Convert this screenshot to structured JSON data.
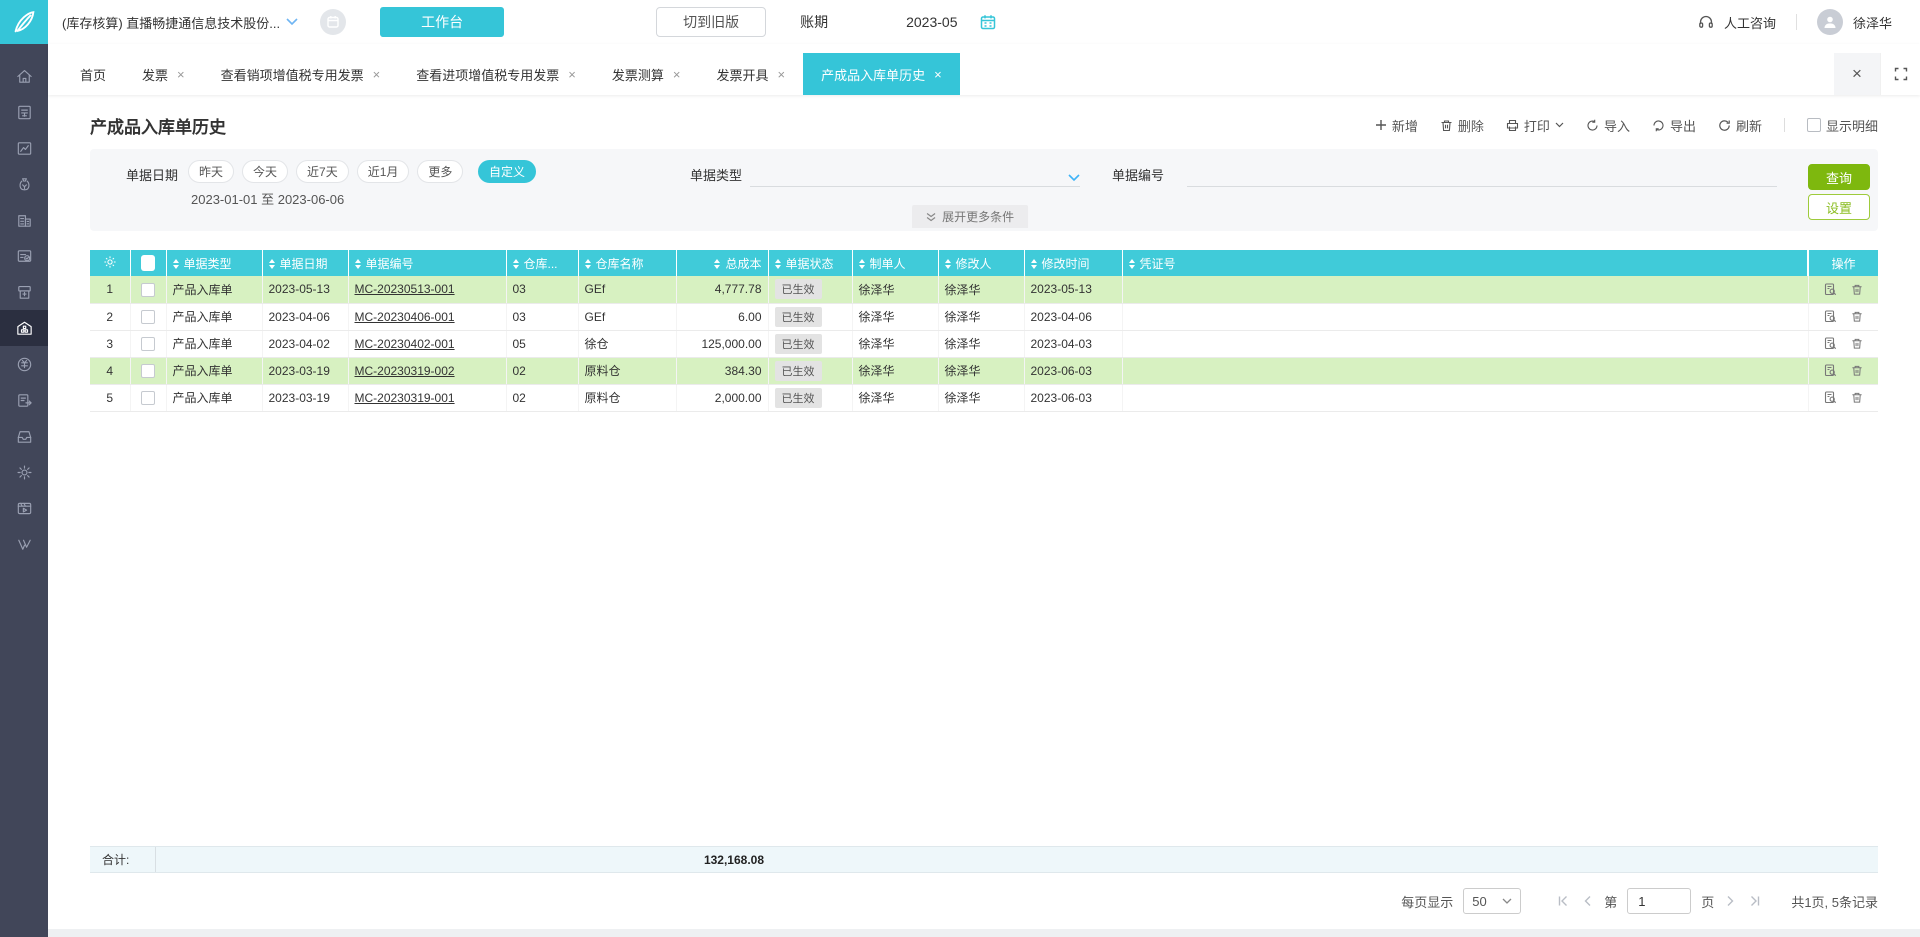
{
  "topbar": {
    "company": "(库存核算) 直播畅捷通信息技术股份...",
    "workbench": "工作台",
    "switch_old": "切到旧版",
    "period_label": "账期",
    "period": "2023-05",
    "support": "人工咨询",
    "user": "徐泽华"
  },
  "tabs": [
    {
      "label": "首页",
      "closable": false,
      "active": false
    },
    {
      "label": "发票",
      "closable": true,
      "active": false
    },
    {
      "label": "查看销项增值税专用发票",
      "closable": true,
      "active": false
    },
    {
      "label": "查看进项增值税专用发票",
      "closable": true,
      "active": false
    },
    {
      "label": "发票测算",
      "closable": true,
      "active": false
    },
    {
      "label": "发票开具",
      "closable": true,
      "active": false
    },
    {
      "label": "产成品入库单历史",
      "closable": true,
      "active": true
    }
  ],
  "page": {
    "title": "产成品入库单历史"
  },
  "toolbar": {
    "add": "新增",
    "delete": "删除",
    "print": "打印",
    "import": "导入",
    "export": "导出",
    "refresh": "刷新",
    "show_detail": "显示明细"
  },
  "filters": {
    "date_label": "单据日期",
    "quick": [
      "昨天",
      "今天",
      "近7天",
      "近1月",
      "更多"
    ],
    "custom": "自定义",
    "range": "2023-01-01 至 2023-06-06",
    "type_label": "单据类型",
    "code_label": "单据编号",
    "query": "查询",
    "settings": "设置",
    "expand": "展开更多条件"
  },
  "table": {
    "headers": {
      "type": "单据类型",
      "date": "单据日期",
      "code": "单据编号",
      "wh_code": "仓库...",
      "wh_name": "仓库名称",
      "cost": "总成本",
      "status": "单据状态",
      "maker": "制单人",
      "modifier": "修改人",
      "mtime": "修改时间",
      "voucher": "凭证号",
      "action": "操作"
    },
    "rows": [
      {
        "no": "1",
        "type": "产品入库单",
        "date": "2023-05-13",
        "code": "MC-20230513-001",
        "wh_code": "03",
        "wh_name": "GEf",
        "cost": "4,777.78",
        "status": "已生效",
        "maker": "徐泽华",
        "modifier": "徐泽华",
        "mtime": "2023-05-13",
        "voucher": "",
        "highlight": true
      },
      {
        "no": "2",
        "type": "产品入库单",
        "date": "2023-04-06",
        "code": "MC-20230406-001",
        "wh_code": "03",
        "wh_name": "GEf",
        "cost": "6.00",
        "status": "已生效",
        "maker": "徐泽华",
        "modifier": "徐泽华",
        "mtime": "2023-04-06",
        "voucher": "",
        "highlight": false
      },
      {
        "no": "3",
        "type": "产品入库单",
        "date": "2023-04-02",
        "code": "MC-20230402-001",
        "wh_code": "05",
        "wh_name": "徐仓",
        "cost": "125,000.00",
        "status": "已生效",
        "maker": "徐泽华",
        "modifier": "徐泽华",
        "mtime": "2023-04-03",
        "voucher": "",
        "highlight": false
      },
      {
        "no": "4",
        "type": "产品入库单",
        "date": "2023-03-19",
        "code": "MC-20230319-002",
        "wh_code": "02",
        "wh_name": "原料仓",
        "cost": "384.30",
        "status": "已生效",
        "maker": "徐泽华",
        "modifier": "徐泽华",
        "mtime": "2023-06-03",
        "voucher": "",
        "highlight": true
      },
      {
        "no": "5",
        "type": "产品入库单",
        "date": "2023-03-19",
        "code": "MC-20230319-001",
        "wh_code": "02",
        "wh_name": "原料仓",
        "cost": "2,000.00",
        "status": "已生效",
        "maker": "徐泽华",
        "modifier": "徐泽华",
        "mtime": "2023-06-03",
        "voucher": "",
        "highlight": false
      }
    ],
    "total_label": "合计:",
    "total_cost": "132,168.08"
  },
  "pagination": {
    "per_page_label": "每页显示",
    "per_page": "50",
    "page_pre": "第",
    "page": "1",
    "page_post": "页",
    "summary": "共1页, 5条记录"
  },
  "sidebar": {
    "items": [
      "home",
      "invoice",
      "report-chart",
      "funds",
      "company",
      "statement",
      "cashier",
      "warehouse",
      "tax",
      "voucher-transfer",
      "inbox",
      "settings",
      "video",
      "brand-v"
    ],
    "active_index": 7
  },
  "colors": {
    "teal": "#35c5d8",
    "table_header": "#40cbd9",
    "green_row": "#d7f1c1",
    "query_green": "#7eb80e",
    "sidebar_bg": "#414659"
  }
}
